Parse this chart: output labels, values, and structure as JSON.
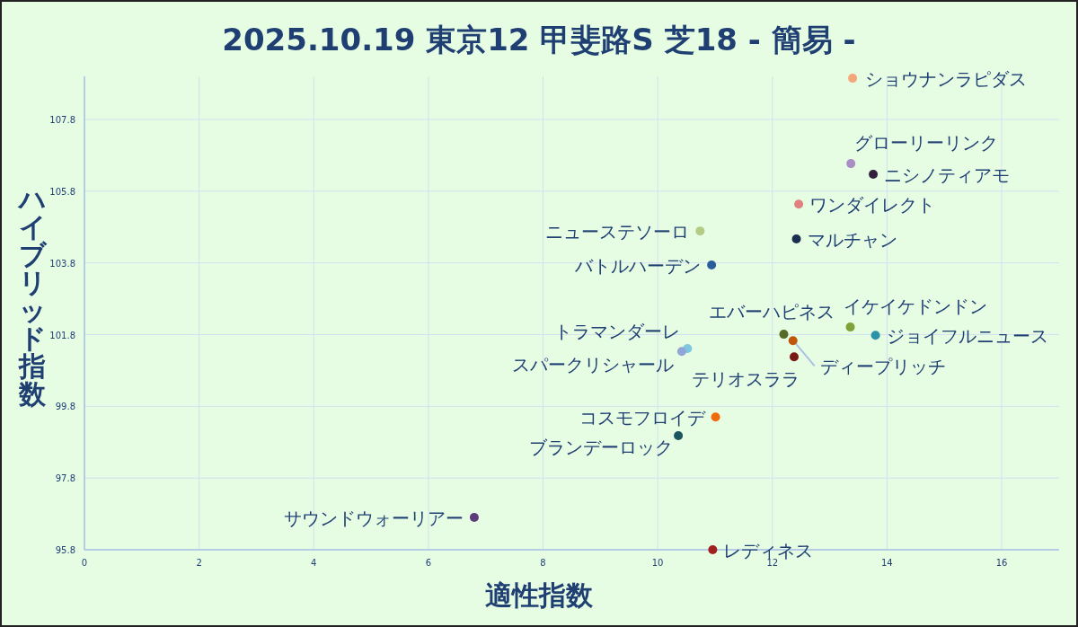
{
  "chart_data": {
    "type": "scatter",
    "title": "2025.10.19 東京12 甲斐路S 芝18 - 簡易 -",
    "xlabel": "適性指数",
    "ylabel": "ハイブリッド指数",
    "xlim": [
      0,
      17
    ],
    "xticks": [
      0,
      2,
      4,
      6,
      8,
      10,
      12,
      14,
      16
    ],
    "ylim": [
      95.8,
      109.0
    ],
    "yticks": [
      95.8,
      97.8,
      99.8,
      101.8,
      103.8,
      105.8,
      107.8
    ],
    "grid": true,
    "legend": false,
    "marker": "circle",
    "series": [
      {
        "name": "ショウナンラピダス",
        "color": "#f4a77a",
        "x": [
          13.4
        ],
        "values": [
          108.95
        ]
      },
      {
        "name": "グローリーリンク",
        "color": "#a98dc4",
        "x": [
          13.37
        ],
        "values": [
          106.57
        ]
      },
      {
        "name": "ニシノティアモ",
        "color": "#33203f",
        "x": [
          13.76
        ],
        "values": [
          106.27
        ]
      },
      {
        "name": "ワンダイレクト",
        "color": "#e08080",
        "x": [
          12.46
        ],
        "values": [
          105.44
        ]
      },
      {
        "name": "ニューステソーロ",
        "color": "#b3cc85",
        "x": [
          10.74
        ],
        "values": [
          104.69
        ]
      },
      {
        "name": "マルチャン",
        "color": "#1c2e4f",
        "x": [
          12.42
        ],
        "values": [
          104.47
        ]
      },
      {
        "name": "バトルハーデン",
        "color": "#2a5d9c",
        "x": [
          10.94
        ],
        "values": [
          103.74
        ]
      },
      {
        "name": "イケイケドンドン",
        "color": "#7fa23a",
        "x": [
          13.36
        ],
        "values": [
          102.01
        ]
      },
      {
        "name": "ジョイフルニュース",
        "color": "#2a93a8",
        "x": [
          13.8
        ],
        "values": [
          101.78
        ]
      },
      {
        "name": "エバーハピネス",
        "color": "#566b26",
        "x": [
          12.2
        ],
        "values": [
          101.81
        ]
      },
      {
        "name": "ディープリッチ",
        "color": "#c0560c",
        "x": [
          12.36
        ],
        "values": [
          101.63
        ]
      },
      {
        "name": "テリオスララ",
        "color": "#7a1a14",
        "x": [
          12.38
        ],
        "values": [
          101.18
        ]
      },
      {
        "name": "トラマンダーレ",
        "color": "#7fc6e0",
        "x": [
          10.52
        ],
        "values": [
          101.41
        ]
      },
      {
        "name": "スパークリシャール",
        "color": "#8fa6d6",
        "x": [
          10.42
        ],
        "values": [
          101.33
        ]
      },
      {
        "name": "コスモフロイデ",
        "color": "#f06a0c",
        "x": [
          11.01
        ],
        "values": [
          99.5
        ]
      },
      {
        "name": "ブランデーロック",
        "color": "#1a5560",
        "x": [
          10.36
        ],
        "values": [
          98.98
        ]
      },
      {
        "name": "サウンドウォーリアー",
        "color": "#5e3c7c",
        "x": [
          6.8
        ],
        "values": [
          96.7
        ]
      },
      {
        "name": "レディネス",
        "color": "#a0201e",
        "x": [
          10.96
        ],
        "values": [
          95.8
        ]
      }
    ]
  }
}
